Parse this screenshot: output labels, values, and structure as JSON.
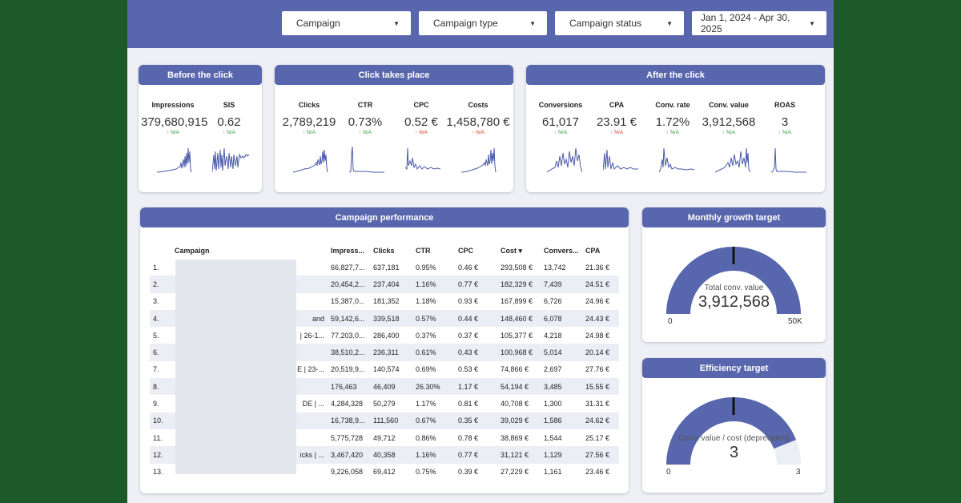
{
  "filters": [
    {
      "label": "Campaign"
    },
    {
      "label": "Campaign type"
    },
    {
      "label": "Campaign status"
    },
    {
      "label": "Jan 1, 2024 - Apr 30, 2025"
    }
  ],
  "before_click": {
    "title": "Before the click",
    "kpis": [
      {
        "label": "Impressions",
        "value": "379,680,915",
        "change": "↑ N/A"
      },
      {
        "label": "SIS",
        "value": "0.62",
        "change": "↑ N/A"
      }
    ]
  },
  "click_place": {
    "title": "Click takes place",
    "kpis": [
      {
        "label": "Clicks",
        "value": "2,789,219",
        "change": "↑ N/A"
      },
      {
        "label": "CTR",
        "value": "0.73%",
        "change": "↑ N/A"
      },
      {
        "label": "CPC",
        "value": "0.52 €",
        "change": "↑ N/A"
      },
      {
        "label": "Costs",
        "value": "1,458,780 €",
        "change": "↑ N/A"
      }
    ]
  },
  "after_click": {
    "title": "After the click",
    "kpis": [
      {
        "label": "Conversions",
        "value": "61,017",
        "change": "↑ N/A"
      },
      {
        "label": "CPA",
        "value": "23.91 €",
        "change": "↑ N/A"
      },
      {
        "label": "Conv. rate",
        "value": "1.72%",
        "change": "↑ N/A"
      },
      {
        "label": "Conv. value",
        "value": "3,912,568",
        "change": "↑ N/A"
      },
      {
        "label": "ROAS",
        "value": "3",
        "change": "↑ N/A"
      }
    ]
  },
  "colors": {
    "primary": "#5866ad",
    "up": "#2e9a3c",
    "down": "#d9372b",
    "sparkline": "#4a5aa8"
  },
  "performance": {
    "title": "Campaign performance",
    "columns": [
      "",
      "Campaign",
      "Impress...",
      "Clicks",
      "CTR",
      "CPC",
      "Cost",
      "Convers...",
      "CPA"
    ],
    "sort_indicator": "▾",
    "rows": [
      [
        "1.",
        "",
        "66,827,7...",
        "637,181",
        "0.95%",
        "0.46 €",
        "293,508 €",
        "13,742",
        "21.36 €"
      ],
      [
        "2.",
        "",
        "20,454,2...",
        "237,404",
        "1.16%",
        "0.77 €",
        "182,329 €",
        "7,439",
        "24.51 €"
      ],
      [
        "3.",
        "",
        "15,387,0...",
        "181,352",
        "1.18%",
        "0.93 €",
        "167,899 €",
        "6,726",
        "24.96 €"
      ],
      [
        "4.",
        "and",
        "59,142,6...",
        "339,518",
        "0.57%",
        "0.44 €",
        "148,460 €",
        "6,078",
        "24.43 €"
      ],
      [
        "5.",
        "| 26-1...",
        "77,203,0...",
        "286,400",
        "0.37%",
        "0.37 €",
        "105,377 €",
        "4,218",
        "24.98 €"
      ],
      [
        "6.",
        "",
        "38,510,2...",
        "236,311",
        "0.61%",
        "0.43 €",
        "100,968 €",
        "5,014",
        "20.14 €"
      ],
      [
        "7.",
        "E | 23-...",
        "20,519,9...",
        "140,574",
        "0.69%",
        "0.53 €",
        "74,866 €",
        "2,697",
        "27.76 €"
      ],
      [
        "8.",
        "",
        "176,463",
        "46,409",
        "26.30%",
        "1.17 €",
        "54,194 €",
        "3,485",
        "15.55 €"
      ],
      [
        "9.",
        "DE | ...",
        "4,284,328",
        "50,279",
        "1.17%",
        "0.81 €",
        "40,708 €",
        "1,300",
        "31.31 €"
      ],
      [
        "10.",
        "",
        "16,738,9...",
        "111,560",
        "0.67%",
        "0.35 €",
        "39,029 €",
        "1,586",
        "24.62 €"
      ],
      [
        "11.",
        "",
        "5,775,728",
        "49,712",
        "0.86%",
        "0.78 €",
        "38,869 €",
        "1,544",
        "25.17 €"
      ],
      [
        "12.",
        "icks | ...",
        "3,467,420",
        "40,358",
        "1.16%",
        "0.77 €",
        "31,121 €",
        "1,129",
        "27.56 €"
      ],
      [
        "13.",
        "",
        "9,226,058",
        "69,412",
        "0.75%",
        "0.39 €",
        "27,229 €",
        "1,161",
        "23.46 €"
      ]
    ]
  },
  "monthly_target": {
    "title": "Monthly growth target",
    "label": "Total conv. value",
    "value": "3,912,568",
    "min": "0",
    "max": "50K",
    "fill_fraction": 1.0
  },
  "efficiency_target": {
    "title": "Efficiency target",
    "label": "Conv. value / cost (deprecated)",
    "value": "3",
    "min": "0",
    "max": "3",
    "fill_fraction": 0.88
  }
}
